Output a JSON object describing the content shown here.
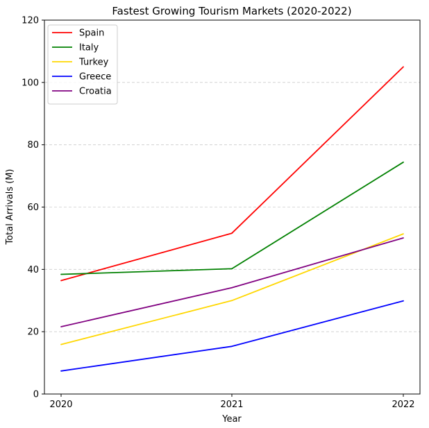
{
  "chart_data": {
    "type": "line",
    "title": "Fastest Growing Tourism Markets (2020-2022)",
    "xlabel": "Year",
    "ylabel": "Total Arrivals (M)",
    "x": [
      "2020",
      "2021",
      "2022"
    ],
    "ylim": [
      0,
      120
    ],
    "yticks": [
      "0",
      "20",
      "40",
      "60",
      "80",
      "100",
      "120"
    ],
    "grid": "y-dashed",
    "legend_position": "top-left",
    "series": [
      {
        "name": "Spain",
        "color": "#ff0000",
        "values": [
          36.4,
          51.6,
          105.0
        ]
      },
      {
        "name": "Italy",
        "color": "#008000",
        "values": [
          38.4,
          40.2,
          74.4
        ]
      },
      {
        "name": "Turkey",
        "color": "#ffd700",
        "values": [
          15.9,
          30.0,
          51.4
        ]
      },
      {
        "name": "Greece",
        "color": "#0000ff",
        "values": [
          7.4,
          15.3,
          29.9
        ]
      },
      {
        "name": "Croatia",
        "color": "#800080",
        "values": [
          21.6,
          34.1,
          50.1
        ]
      }
    ]
  }
}
